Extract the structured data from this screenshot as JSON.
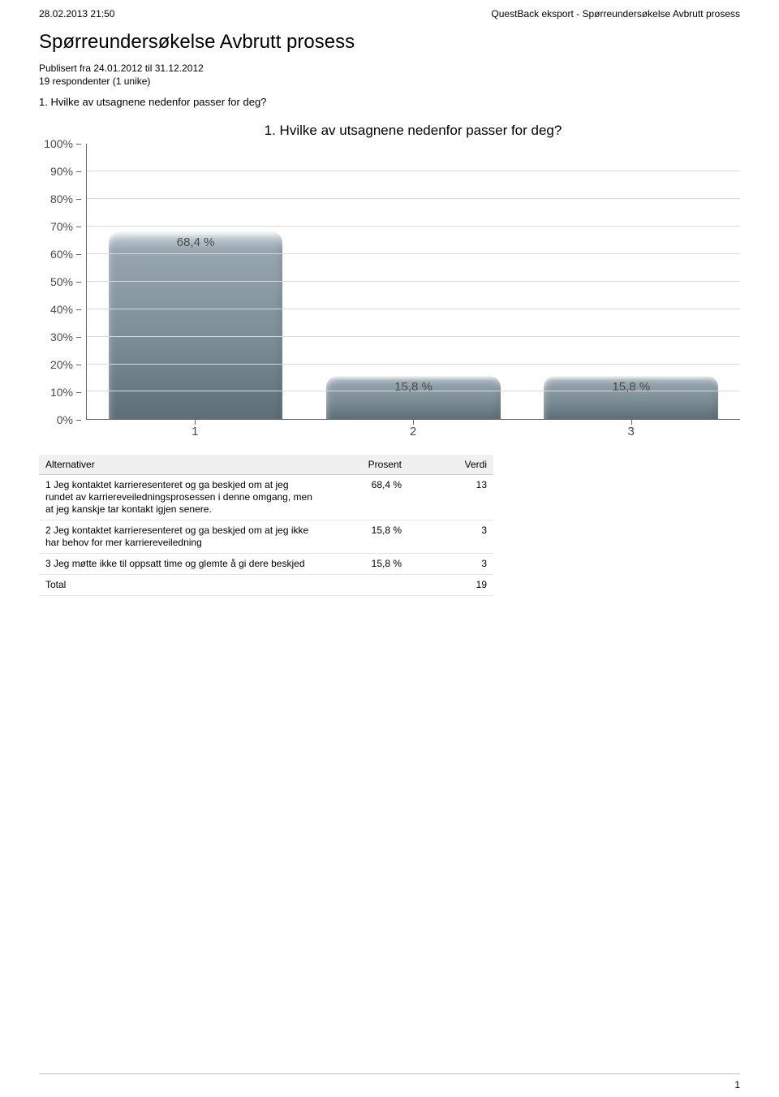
{
  "header": {
    "timestamp": "28.02.2013 21:50",
    "export_label": "QuestBack eksport - Spørreundersøkelse Avbrutt prosess"
  },
  "title": "Spørreundersøkelse Avbrutt prosess",
  "meta": {
    "published": "Publisert fra 24.01.2012 til 31.12.2012",
    "respondents": "19 respondenter (1 unike)"
  },
  "question_line": "1. Hvilke av utsagnene nedenfor passer for deg?",
  "chart": {
    "type": "bar",
    "title": "1. Hvilke av utsagnene nedenfor passer for deg?",
    "title_fontsize": 17,
    "label_fontsize": 15,
    "background_color": "#ffffff",
    "grid_color": "#d9d9d9",
    "axis_color": "#666666",
    "bar_gradient_top": "#e8edf0",
    "bar_gradient_mid": "#97a6af",
    "bar_gradient_bottom": "#5d6e78",
    "bar_width_pct": 80,
    "bar_border_radius": 14,
    "ylim": [
      0,
      100
    ],
    "ytick_step": 10,
    "yticks": [
      "100%",
      "90%",
      "80%",
      "70%",
      "60%",
      "50%",
      "40%",
      "30%",
      "20%",
      "10%",
      "0%"
    ],
    "categories": [
      "1",
      "2",
      "3"
    ],
    "values": [
      68.4,
      15.8,
      15.8
    ],
    "value_labels": [
      "68,4 %",
      "15,8 %",
      "15,8 %"
    ]
  },
  "table": {
    "columns": [
      "Alternativer",
      "Prosent",
      "Verdi"
    ],
    "rows": [
      {
        "alt": "1 Jeg kontaktet karrieresenteret og ga beskjed om at jeg rundet av karriereveiledningsprosessen i denne omgang, men at jeg kanskje tar kontakt igjen senere.",
        "prosent": "68,4 %",
        "verdi": "13"
      },
      {
        "alt": "2 Jeg kontaktet karrieresenteret og ga beskjed om at jeg ikke har behov for mer karriereveiledning",
        "prosent": "15,8 %",
        "verdi": "3"
      },
      {
        "alt": "3 Jeg møtte ikke til oppsatt time og glemte å gi dere beskjed",
        "prosent": "15,8 %",
        "verdi": "3"
      }
    ],
    "total_label": "Total",
    "total_value": "19"
  },
  "page_number": "1"
}
